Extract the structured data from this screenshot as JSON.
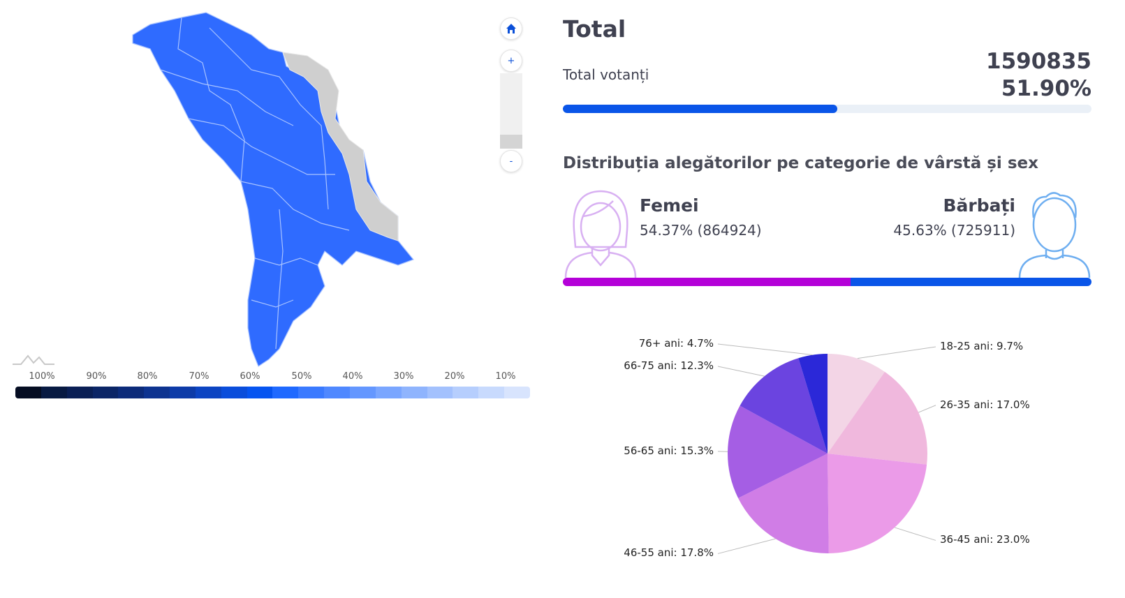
{
  "map": {
    "controls": {
      "home_icon": "home-icon",
      "zoom_in": "+",
      "zoom_out": "-"
    },
    "legend": {
      "labels": [
        "100%",
        "90%",
        "80%",
        "70%",
        "60%",
        "50%",
        "40%",
        "30%",
        "20%",
        "10%"
      ],
      "colors": [
        "#050d22",
        "#081a42",
        "#0a1f55",
        "#0b2566",
        "#0c2b7a",
        "#0d3390",
        "#0d3ba8",
        "#0c44c2",
        "#0a4ddb",
        "#0654f0",
        "#1f69ff",
        "#3a7aff",
        "#4f88ff",
        "#6497ff",
        "#7aa6ff",
        "#8fb4fd",
        "#a3c1fd",
        "#b6cefd",
        "#c8dafd",
        "#d8e4fd"
      ]
    }
  },
  "summary": {
    "title": "Total",
    "voters_label": "Total votanți",
    "voters_count": "1590835",
    "voters_percent": "51.90%",
    "turnout_fraction": 0.519
  },
  "gender": {
    "heading": "Distribuția alegătorilor pe categorie de vârstă și sex",
    "female": {
      "label": "Femei",
      "value": "54.37% (864924)",
      "fraction": 0.5437,
      "color": "#b400d8"
    },
    "male": {
      "label": "Bărbați",
      "value": "45.63% (725911)",
      "fraction": 0.4563,
      "color": "#0a55e8"
    }
  },
  "chart_data": {
    "type": "pie",
    "categories": [
      "18-25 ani",
      "26-35 ani",
      "36-45 ani",
      "46-55 ani",
      "56-65 ani",
      "66-75 ani",
      "76+ ani"
    ],
    "values": [
      9.7,
      17.0,
      23.0,
      17.8,
      15.3,
      12.3,
      4.7
    ],
    "labels": [
      "18-25 ani: 9.7%",
      "26-35 ani: 17.0%",
      "36-45 ani: 23.0%",
      "46-55 ani: 17.8%",
      "56-65 ani: 15.3%",
      "66-75 ani: 12.3%",
      "76+ ani: 4.7%"
    ],
    "colors": [
      "#f3d5e6",
      "#f0b8dd",
      "#eb9be8",
      "#d07de6",
      "#a55ee4",
      "#6b44e0",
      "#2b28d8"
    ]
  }
}
